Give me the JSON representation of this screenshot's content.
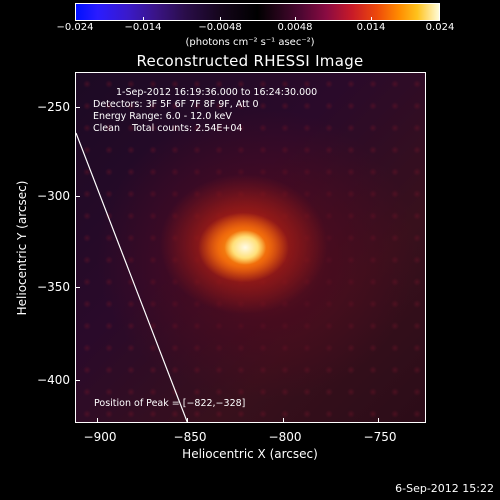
{
  "colorbar": {
    "ticks": [
      "−0.024",
      "−0.014",
      "−0.0048",
      "0.0048",
      "0.014",
      "0.024"
    ],
    "units": "(photons cm⁻² s⁻¹ asec⁻²)",
    "colors": {
      "low": "#0010ff",
      "mid": "#000000",
      "high": "#fffcd8"
    }
  },
  "title": "Reconstructed RHESSI Image",
  "info": {
    "time_range": "1-Sep-2012 16:19:36.000 to 16:24:30.000",
    "detectors": "Detectors: 3F 5F 6F 7F 8F 9F, Att 0",
    "energy": "Energy Range: 6.0 - 12.0 keV",
    "clean": "Clean    Total counts: 2.54E+04",
    "peak": "Position of Peak = [−822,−328]"
  },
  "axes": {
    "x_label": "Heliocentric X (arcsec)",
    "y_label": "Heliocentric Y (arcsec)",
    "x_ticks": [
      "−900",
      "−850",
      "−800",
      "−750"
    ],
    "y_ticks": [
      "−250",
      "−300",
      "−350",
      "−400"
    ]
  },
  "image": {
    "peak_x": -822,
    "peak_y": -328
  },
  "timestamp": "6-Sep-2012 15:22"
}
